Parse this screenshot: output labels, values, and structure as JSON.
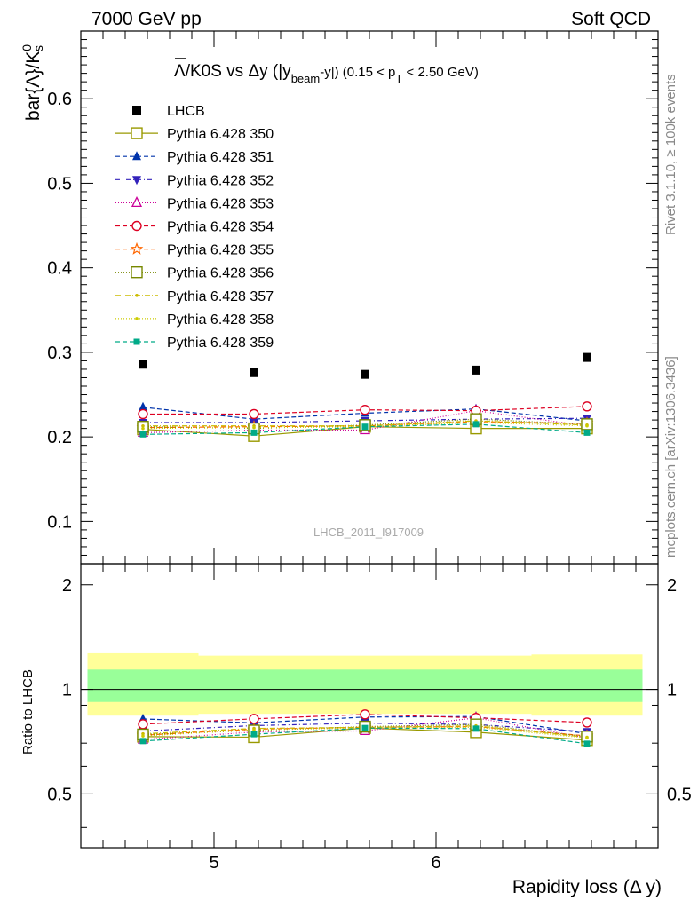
{
  "header": {
    "left": "7000 GeV pp",
    "right": "Soft QCD"
  },
  "side_labels": {
    "rivet": "Rivet 3.1.10, ≥ 100k events",
    "source": "mcplots.cern.ch [arXiv:1306.3436]"
  },
  "watermark": "LHCB_2011_I917009",
  "title": {
    "main": "Λ/K0S vs Δy (|y",
    "sub_beam": "beam",
    "mid": "-y|) (0.15 < p",
    "sub_t": "T",
    "end": " < 2.50 GeV)"
  },
  "ylabel_main": "bar{Λ}/K",
  "ylabel_main_sup": "0",
  "ylabel_main_sub": "s",
  "ylabel_ratio": "Ratio to LHCB",
  "xlabel": "Rapidity loss (Δ y)",
  "colors": {
    "lhcb": "#000000",
    "band_inner": "#99ff99",
    "band_outer": "#ffff99"
  },
  "chart_data": {
    "type": "scatter",
    "x": [
      4.68,
      5.18,
      5.68,
      6.18,
      6.68
    ],
    "xlim": [
      4.4,
      7.0
    ],
    "xticks": [
      5,
      6
    ],
    "ylim": [
      0.05,
      0.68
    ],
    "yticks": [
      0.1,
      0.2,
      0.3,
      0.4,
      0.5,
      0.6
    ],
    "ratio_ylim": [
      0.35,
      2.3
    ],
    "ratio_yticks": [
      0.5,
      1,
      2
    ],
    "reference": {
      "name": "LHCB",
      "x": [
        4.68,
        5.18,
        5.68,
        6.18,
        6.68
      ],
      "values": [
        0.286,
        0.276,
        0.274,
        0.279,
        0.294
      ],
      "bin_edges": [
        4.43,
        4.93,
        5.43,
        5.93,
        6.43,
        6.93
      ],
      "band_inner": [
        [
          0.92,
          1.14
        ],
        [
          0.92,
          1.14
        ],
        [
          0.92,
          1.14
        ],
        [
          0.92,
          1.14
        ],
        [
          0.92,
          1.14
        ]
      ],
      "band_outer": [
        [
          0.84,
          1.27
        ],
        [
          0.85,
          1.25
        ],
        [
          0.85,
          1.25
        ],
        [
          0.85,
          1.25
        ],
        [
          0.84,
          1.26
        ]
      ]
    },
    "series": [
      {
        "name": "Pythia 6.428 350",
        "color": "#999900",
        "marker": "open-square",
        "dash": "",
        "values": [
          0.209,
          0.201,
          0.212,
          0.21,
          0.21
        ]
      },
      {
        "name": "Pythia 6.428 351",
        "color": "#0033aa",
        "marker": "filled-triangle-up",
        "dash": "5,3",
        "values": [
          0.235,
          0.221,
          0.228,
          0.233,
          0.219
        ]
      },
      {
        "name": "Pythia 6.428 352",
        "color": "#3322bb",
        "marker": "filled-triangle-down",
        "dash": "5,3,1,3",
        "values": [
          0.217,
          0.217,
          0.219,
          0.221,
          0.222
        ]
      },
      {
        "name": "Pythia 6.428 353",
        "color": "#cc0099",
        "marker": "open-triangle-up",
        "dash": "1,2",
        "values": [
          0.205,
          0.208,
          0.208,
          0.231,
          0.213
        ]
      },
      {
        "name": "Pythia 6.428 354",
        "color": "#dd0022",
        "marker": "open-circle",
        "dash": "5,3",
        "values": [
          0.227,
          0.227,
          0.232,
          0.231,
          0.236
        ]
      },
      {
        "name": "Pythia 6.428 355",
        "color": "#ff6600",
        "marker": "open-star",
        "dash": "5,3",
        "values": [
          0.211,
          0.212,
          0.213,
          0.218,
          0.216
        ]
      },
      {
        "name": "Pythia 6.428 356",
        "color": "#778800",
        "marker": "open-square",
        "dash": "1,2",
        "values": [
          0.212,
          0.21,
          0.214,
          0.221,
          0.215
        ]
      },
      {
        "name": "Pythia 6.428 357",
        "color": "#ccbb00",
        "marker": "small-dot",
        "dash": "6,2,1,2",
        "values": [
          0.213,
          0.213,
          0.213,
          0.219,
          0.214
        ]
      },
      {
        "name": "Pythia 6.428 358",
        "color": "#cccc00",
        "marker": "small-dot",
        "dash": "1,2",
        "values": [
          0.21,
          0.211,
          0.212,
          0.217,
          0.213
        ]
      },
      {
        "name": "Pythia 6.428 359",
        "color": "#00aa88",
        "marker": "filled-square",
        "dash": "5,3",
        "values": [
          0.203,
          0.205,
          0.212,
          0.215,
          0.205
        ]
      }
    ]
  }
}
